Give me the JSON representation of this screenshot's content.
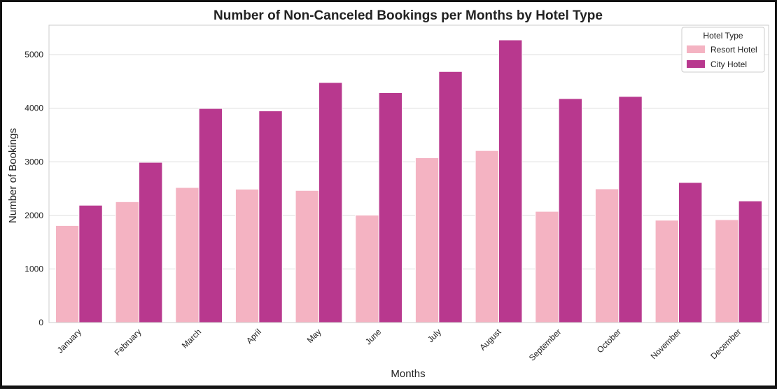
{
  "chart_data": {
    "type": "bar",
    "title": "Number of Non-Canceled Bookings per Months by Hotel Type",
    "xlabel": "Months",
    "ylabel": "Number of Bookings",
    "ylim": [
      0,
      5550
    ],
    "yticks": [
      0,
      1000,
      2000,
      3000,
      4000,
      5000
    ],
    "grid": true,
    "legend": {
      "title": "Hotel Type",
      "placement": "top-right"
    },
    "categories": [
      "January",
      "February",
      "March",
      "April",
      "May",
      "June",
      "July",
      "August",
      "September",
      "October",
      "November",
      "December"
    ],
    "series": [
      {
        "name": "Resort Hotel",
        "color": "#f4b3c2",
        "values": [
          1810,
          2255,
          2520,
          2490,
          2465,
          2005,
          3075,
          3210,
          2075,
          2495,
          1910,
          1920
        ]
      },
      {
        "name": "City Hotel",
        "color": "#b8388e",
        "values": [
          2190,
          2990,
          3995,
          3950,
          4480,
          4290,
          4685,
          5275,
          4180,
          4220,
          2615,
          2270
        ]
      }
    ]
  }
}
